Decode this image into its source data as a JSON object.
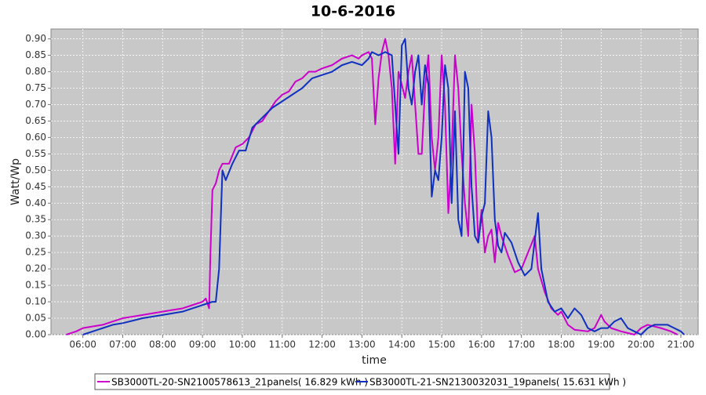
{
  "chart_data": {
    "type": "line",
    "title": "10-6-2016",
    "x_label": "time",
    "y_label": "Watt/Wp",
    "xlim": [
      "05:12",
      "21:26"
    ],
    "xticks": [
      "06:00",
      "07:00",
      "08:00",
      "09:00",
      "10:00",
      "11:00",
      "12:00",
      "13:00",
      "14:00",
      "15:00",
      "16:00",
      "17:00",
      "18:00",
      "19:00",
      "20:00",
      "21:00"
    ],
    "ylim": [
      0,
      0.93
    ],
    "yticks": [
      {
        "value": 0,
        "label": "0.00"
      },
      {
        "value": 0.05,
        "label": "0.05"
      },
      {
        "value": 0.1,
        "label": "0.10"
      },
      {
        "value": 0.15,
        "label": "0.15"
      },
      {
        "value": 0.2,
        "label": "0.20"
      },
      {
        "value": 0.25,
        "label": "0.25"
      },
      {
        "value": 0.3,
        "label": "0.30"
      },
      {
        "value": 0.35,
        "label": "0.35"
      },
      {
        "value": 0.4,
        "label": "0.40"
      },
      {
        "value": 0.45,
        "label": "0.45"
      },
      {
        "value": 0.5,
        "label": "0.50"
      },
      {
        "value": 0.55,
        "label": "0.55"
      },
      {
        "value": 0.6,
        "label": "0.60"
      },
      {
        "value": 0.65,
        "label": "0.65"
      },
      {
        "value": 0.7,
        "label": "0.70"
      },
      {
        "value": 0.75,
        "label": "0.75"
      },
      {
        "value": 0.8,
        "label": "0.80"
      },
      {
        "value": 0.85,
        "label": "0.85"
      },
      {
        "value": 0.9,
        "label": "0.90"
      }
    ],
    "grid": true,
    "legend": "bottom",
    "series": [
      {
        "name": "SB3000TL-20-SN2100578613_21panels( 16.829 kWh )",
        "color": "#cc00cc",
        "x": [
          "05:35",
          "05:50",
          "06:00",
          "06:15",
          "06:30",
          "06:45",
          "07:00",
          "07:15",
          "07:30",
          "07:45",
          "08:00",
          "08:15",
          "08:30",
          "08:45",
          "09:00",
          "09:05",
          "09:10",
          "09:12",
          "09:15",
          "09:20",
          "09:25",
          "09:30",
          "09:40",
          "09:50",
          "10:00",
          "10:10",
          "10:20",
          "10:30",
          "10:40",
          "10:50",
          "11:00",
          "11:10",
          "11:20",
          "11:30",
          "11:40",
          "11:50",
          "12:00",
          "12:15",
          "12:30",
          "12:45",
          "12:55",
          "13:00",
          "13:10",
          "13:15",
          "13:20",
          "13:25",
          "13:30",
          "13:35",
          "13:40",
          "13:45",
          "13:50",
          "13:55",
          "14:00",
          "14:05",
          "14:10",
          "14:15",
          "14:20",
          "14:25",
          "14:30",
          "14:35",
          "14:40",
          "14:45",
          "14:50",
          "14:55",
          "15:00",
          "15:05",
          "15:10",
          "15:15",
          "15:20",
          "15:25",
          "15:30",
          "15:35",
          "15:40",
          "15:45",
          "15:50",
          "15:55",
          "16:00",
          "16:05",
          "16:10",
          "16:15",
          "16:20",
          "16:25",
          "16:30",
          "16:40",
          "16:50",
          "17:00",
          "17:10",
          "17:20",
          "17:25",
          "17:35",
          "17:45",
          "17:55",
          "18:00",
          "18:10",
          "18:20",
          "18:40",
          "18:50",
          "19:00",
          "19:05",
          "19:15",
          "19:30",
          "19:40",
          "19:50",
          "20:00",
          "20:10",
          "20:30",
          "20:45",
          "20:55"
        ],
        "values": [
          0,
          0.01,
          0.02,
          0.025,
          0.03,
          0.04,
          0.05,
          0.055,
          0.06,
          0.065,
          0.07,
          0.075,
          0.08,
          0.09,
          0.1,
          0.11,
          0.08,
          0.25,
          0.44,
          0.46,
          0.5,
          0.52,
          0.52,
          0.57,
          0.58,
          0.6,
          0.64,
          0.65,
          0.68,
          0.71,
          0.73,
          0.74,
          0.77,
          0.78,
          0.8,
          0.8,
          0.81,
          0.82,
          0.84,
          0.85,
          0.84,
          0.85,
          0.86,
          0.84,
          0.64,
          0.78,
          0.86,
          0.9,
          0.85,
          0.75,
          0.52,
          0.8,
          0.76,
          0.72,
          0.8,
          0.85,
          0.7,
          0.55,
          0.55,
          0.75,
          0.85,
          0.6,
          0.5,
          0.6,
          0.85,
          0.7,
          0.37,
          0.55,
          0.85,
          0.75,
          0.55,
          0.4,
          0.3,
          0.7,
          0.55,
          0.28,
          0.38,
          0.25,
          0.3,
          0.32,
          0.22,
          0.34,
          0.3,
          0.24,
          0.19,
          0.2,
          0.25,
          0.3,
          0.2,
          0.13,
          0.08,
          0.06,
          0.07,
          0.03,
          0.015,
          0.01,
          0.02,
          0.06,
          0.04,
          0.02,
          0.01,
          0.005,
          0,
          0.02,
          0.03,
          0.02,
          0.01,
          0
        ]
      },
      {
        "name": "SB3000TL-21-SN2130032031_19panels( 15.631 kWh )",
        "color": "#1030c0",
        "x": [
          "06:00",
          "06:15",
          "06:30",
          "06:45",
          "07:00",
          "07:30",
          "08:00",
          "08:30",
          "08:45",
          "09:00",
          "09:15",
          "09:20",
          "09:25",
          "09:30",
          "09:35",
          "09:45",
          "09:55",
          "10:05",
          "10:15",
          "10:30",
          "10:45",
          "11:00",
          "11:15",
          "11:30",
          "11:45",
          "12:00",
          "12:15",
          "12:30",
          "12:45",
          "13:00",
          "13:10",
          "13:15",
          "13:25",
          "13:35",
          "13:45",
          "13:50",
          "13:55",
          "14:00",
          "14:05",
          "14:10",
          "14:15",
          "14:20",
          "14:25",
          "14:30",
          "14:35",
          "14:40",
          "14:45",
          "14:50",
          "14:55",
          "15:00",
          "15:05",
          "15:10",
          "15:15",
          "15:20",
          "15:25",
          "15:30",
          "15:35",
          "15:40",
          "15:45",
          "15:50",
          "15:55",
          "16:00",
          "16:05",
          "16:10",
          "16:15",
          "16:20",
          "16:25",
          "16:30",
          "16:35",
          "16:45",
          "16:55",
          "17:05",
          "17:15",
          "17:25",
          "17:30",
          "17:40",
          "17:50",
          "18:00",
          "18:10",
          "18:20",
          "18:30",
          "18:40",
          "18:50",
          "19:00",
          "19:10",
          "19:20",
          "19:30",
          "19:40",
          "19:50",
          "20:00",
          "20:10",
          "20:20",
          "20:30",
          "20:40",
          "20:50",
          "21:00",
          "21:05"
        ],
        "values": [
          0,
          0.01,
          0.02,
          0.03,
          0.035,
          0.05,
          0.06,
          0.07,
          0.08,
          0.09,
          0.1,
          0.1,
          0.2,
          0.5,
          0.47,
          0.52,
          0.56,
          0.56,
          0.63,
          0.66,
          0.69,
          0.71,
          0.73,
          0.75,
          0.78,
          0.79,
          0.8,
          0.82,
          0.83,
          0.82,
          0.84,
          0.86,
          0.85,
          0.86,
          0.85,
          0.7,
          0.55,
          0.88,
          0.9,
          0.75,
          0.7,
          0.8,
          0.85,
          0.7,
          0.82,
          0.76,
          0.42,
          0.5,
          0.47,
          0.6,
          0.82,
          0.75,
          0.4,
          0.68,
          0.35,
          0.3,
          0.8,
          0.75,
          0.45,
          0.3,
          0.28,
          0.36,
          0.4,
          0.68,
          0.6,
          0.35,
          0.27,
          0.25,
          0.31,
          0.28,
          0.22,
          0.18,
          0.2,
          0.37,
          0.2,
          0.1,
          0.07,
          0.08,
          0.05,
          0.08,
          0.06,
          0.02,
          0.01,
          0.02,
          0.02,
          0.04,
          0.05,
          0.02,
          0.01,
          0,
          0.02,
          0.03,
          0.03,
          0.03,
          0.02,
          0.01,
          0
        ]
      }
    ]
  }
}
